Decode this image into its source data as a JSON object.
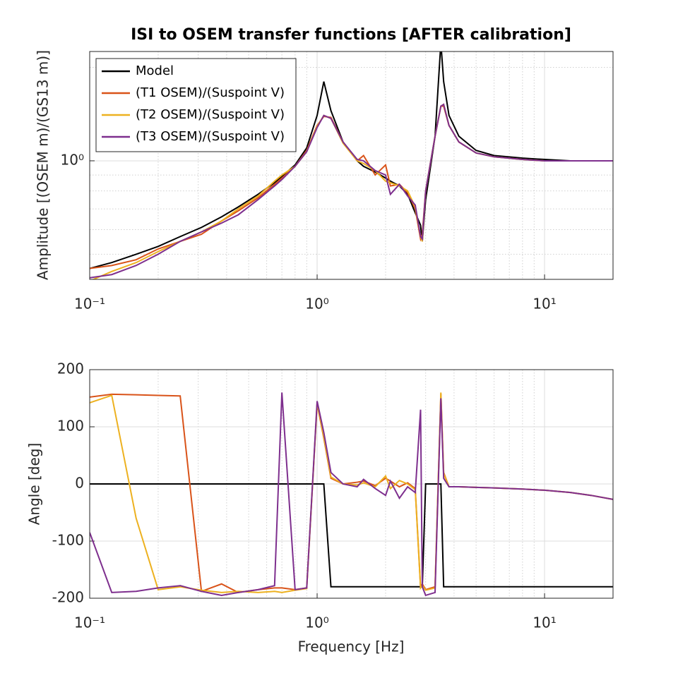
{
  "chart_data": [
    {
      "type": "line",
      "title": "ISI to OSEM transfer functions [AFTER calibration]",
      "ylabel": "Amplitude [(OSEM m)/(GS13 m)]",
      "xscale": "log",
      "yscale": "log",
      "grid": true,
      "legend": "upper left",
      "xlim": [
        0.1,
        20
      ],
      "ylim": [
        0.415,
        2.25
      ],
      "xticks": [
        {
          "value": 0.1,
          "label": "10⁻¹"
        },
        {
          "value": 1,
          "label": "10⁰"
        },
        {
          "value": 10,
          "label": "10¹"
        }
      ],
      "yticks": [
        {
          "value": 1,
          "label": "10⁰"
        }
      ],
      "x": [
        0.1,
        0.125,
        0.16,
        0.2,
        0.25,
        0.31,
        0.38,
        0.45,
        0.55,
        0.65,
        0.7,
        0.8,
        0.9,
        1.0,
        1.07,
        1.15,
        1.3,
        1.5,
        1.6,
        1.8,
        2.0,
        2.1,
        2.3,
        2.5,
        2.7,
        2.85,
        2.9,
        3.0,
        3.3,
        3.5,
        3.6,
        3.8,
        4.2,
        5,
        6,
        8,
        10,
        13,
        16,
        20
      ],
      "series": [
        {
          "name": "Model",
          "color": "#000000",
          "values": [
            0.45,
            0.47,
            0.5,
            0.53,
            0.57,
            0.61,
            0.66,
            0.71,
            0.78,
            0.85,
            0.89,
            0.97,
            1.1,
            1.4,
            1.8,
            1.45,
            1.15,
            1.0,
            0.96,
            0.92,
            0.88,
            0.86,
            0.83,
            0.78,
            0.68,
            0.62,
            0.55,
            0.75,
            1.2,
            2.4,
            1.8,
            1.4,
            1.2,
            1.08,
            1.04,
            1.02,
            1.01,
            1.0,
            1.0,
            1.0
          ]
        },
        {
          "name": "(T1 OSEM)/(Suspoint V)",
          "color": "#d95319",
          "values": [
            0.45,
            0.46,
            0.48,
            0.52,
            0.55,
            0.58,
            0.64,
            0.69,
            0.76,
            0.84,
            0.88,
            0.96,
            1.08,
            1.3,
            1.39,
            1.38,
            1.15,
            1.0,
            1.04,
            0.9,
            0.97,
            0.83,
            0.84,
            0.79,
            0.7,
            0.56,
            0.58,
            0.8,
            1.2,
            1.5,
            1.5,
            1.3,
            1.15,
            1.06,
            1.03,
            1.01,
            1.0,
            1.0,
            1.0,
            1.0
          ]
        },
        {
          "name": "(T2 OSEM)/(Suspoint V)",
          "color": "#edb120",
          "values": [
            0.41,
            0.44,
            0.47,
            0.51,
            0.55,
            0.59,
            0.64,
            0.7,
            0.77,
            0.86,
            0.9,
            0.96,
            1.07,
            1.29,
            1.4,
            1.37,
            1.14,
            1.0,
            0.98,
            0.93,
            0.86,
            0.85,
            0.83,
            0.8,
            0.71,
            0.57,
            0.55,
            0.8,
            1.2,
            1.5,
            1.52,
            1.3,
            1.15,
            1.06,
            1.03,
            1.01,
            1.0,
            1.0,
            1.0,
            1.0
          ]
        },
        {
          "name": "(T3 OSEM)/(Suspoint V)",
          "color": "#7e2f8e",
          "values": [
            0.42,
            0.43,
            0.46,
            0.5,
            0.55,
            0.59,
            0.63,
            0.67,
            0.75,
            0.83,
            0.87,
            0.96,
            1.07,
            1.28,
            1.4,
            1.37,
            1.15,
            1.01,
            1.0,
            0.93,
            0.9,
            0.78,
            0.84,
            0.77,
            0.72,
            0.57,
            0.56,
            0.8,
            1.2,
            1.5,
            1.52,
            1.3,
            1.15,
            1.06,
            1.03,
            1.01,
            1.0,
            1.0,
            1.0,
            1.0
          ]
        }
      ]
    },
    {
      "type": "line",
      "ylabel": "Angle [deg]",
      "xlabel": "Frequency [Hz]",
      "xscale": "log",
      "grid": true,
      "xlim": [
        0.1,
        20
      ],
      "ylim": [
        -200,
        200
      ],
      "xticks": [
        {
          "value": 0.1,
          "label": "10⁻¹"
        },
        {
          "value": 1,
          "label": "10⁰"
        },
        {
          "value": 10,
          "label": "10¹"
        }
      ],
      "yticks": [
        -200,
        -100,
        0,
        100,
        200
      ],
      "x": [
        0.1,
        0.125,
        0.16,
        0.2,
        0.25,
        0.31,
        0.38,
        0.45,
        0.55,
        0.65,
        0.7,
        0.8,
        0.9,
        1.0,
        1.07,
        1.15,
        1.3,
        1.5,
        1.6,
        1.8,
        2.0,
        2.1,
        2.3,
        2.5,
        2.7,
        2.85,
        2.9,
        3.0,
        3.3,
        3.5,
        3.6,
        3.8,
        4.2,
        5,
        6,
        8,
        10,
        13,
        16,
        20
      ],
      "series": [
        {
          "color": "#000000",
          "values": [
            0,
            0,
            0,
            0,
            0,
            0,
            0,
            0,
            0,
            0,
            0,
            0,
            0,
            0,
            0,
            -180,
            -180,
            -180,
            -180,
            -180,
            -180,
            -180,
            -180,
            -180,
            -180,
            -180,
            -180,
            0,
            0,
            0,
            -180,
            -180,
            -180,
            -180,
            -180,
            -180,
            -180,
            -180,
            -180,
            -180
          ]
        },
        {
          "color": "#d95319",
          "values": [
            152,
            157,
            156,
            155,
            154,
            -188,
            -175,
            -190,
            -185,
            -182,
            -182,
            -185,
            -182,
            140,
            80,
            10,
            0,
            3,
            5,
            -3,
            10,
            5,
            -5,
            2,
            -8,
            -180,
            -175,
            -185,
            -180,
            158,
            20,
            -5,
            -5,
            -6,
            -7,
            -9,
            -11,
            -15,
            -20,
            -27
          ]
        },
        {
          "color": "#edb120",
          "values": [
            142,
            155,
            -60,
            -185,
            -180,
            -186,
            -190,
            -188,
            -190,
            -188,
            -190,
            -186,
            -183,
            142,
            82,
            12,
            0,
            -2,
            2,
            -5,
            14,
            -8,
            6,
            0,
            -10,
            -182,
            -178,
            -186,
            -182,
            160,
            18,
            -5,
            -5,
            -6,
            -7,
            -9,
            -11,
            -15,
            -20,
            -27
          ]
        },
        {
          "color": "#7e2f8e",
          "values": [
            -85,
            -190,
            -188,
            -182,
            -178,
            -188,
            -195,
            -190,
            -185,
            -178,
            160,
            -185,
            -182,
            145,
            90,
            20,
            0,
            -5,
            8,
            -8,
            -20,
            5,
            -25,
            -5,
            -15,
            130,
            -180,
            -195,
            -190,
            150,
            10,
            -5,
            -5,
            -6,
            -7,
            -9,
            -11,
            -15,
            -20,
            -27
          ]
        }
      ]
    }
  ]
}
